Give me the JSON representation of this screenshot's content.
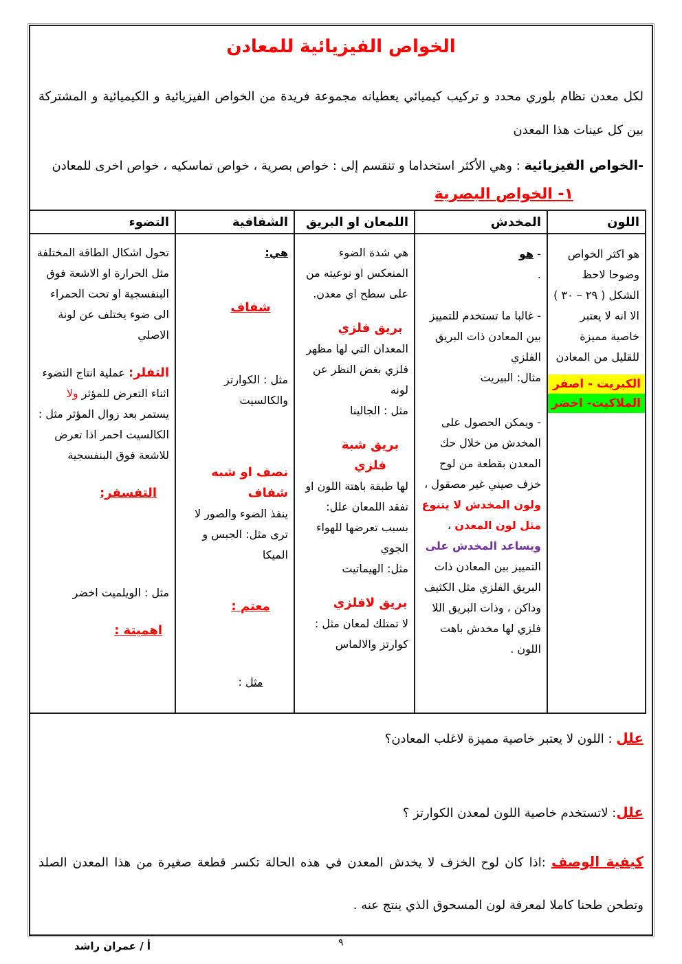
{
  "colors": {
    "accent_red": "#ff0000",
    "emphasis_purple": "#7030a0",
    "highlight_yellow": "#ffff00",
    "highlight_green": "#00ff00",
    "border": "#1c1c1c"
  },
  "header": {
    "title": "الخواص الفيزيائية للمعادن"
  },
  "intro": {
    "text": "لكل معدن نظام بلوري محدد و تركيب كيميائي يعطيانه مجموعة فريدة من الخواص الفيزيائية و الكيميائية و المشتركة بين كل عينات هذا المعدن"
  },
  "physical": {
    "label": "-الخواص الفيزيائية",
    "rest": "  : وهي الأكثر استخداما و تنقسم إلى : خواص بصرية ، خواص تماسكيه ، خواص اخرى للمعادن"
  },
  "optical_heading": "١- الخواص البصرية",
  "table": {
    "headers": {
      "color": "اللون",
      "streak": "المخدش",
      "luster": "اللمعان او البريق",
      "transparency": "الشفافية",
      "luminescence": "التضوء"
    },
    "color": {
      "p1": "هو اكثر الخواص وضوحا لاحظ الشكل ( ٢٩ – ٣٠ ) الا انه لا يعتبر خاصية مميزة للقليل من المعادن",
      "hl_yellow": "الكبريت - اصفر",
      "hl_green": "الملاكيت- اخضر"
    },
    "streak": {
      "dash": "- ",
      "is_label": "هو",
      "dot": ".",
      "p2": "- غالبا ما تستخدم للتمييز بين المعادن ذات البريق الفلزي",
      "p3": "مثال: البيريت",
      "p4a": "- ويمكن الحصول على المخدش من خلال حك المعدن بقطعة من لوح خزف صيني غير مصقول ، ",
      "p4_red": "ولون المخدش لا يتنوع مثل لون المعدن",
      "p4b": " ، ",
      "p4_purple": "ويساعد المخدش على",
      "p4c": " التمييز بين المعادن ذات البريق الفلزي مثل الكثيف وداكن ، وذات البريق اللا فلزي لها مخدش باهت اللون ."
    },
    "luster": {
      "p1": "هي شدة الضوء المنعكس او نوعيته من على سطح اي معدن.",
      "h1": "بريق فلزي",
      "p2": "المعدان التي لها مظهر فلزي بغض النظر عن لونه",
      "p3": "مثل : الجالينا",
      "h2": "بريق شبة فلزي",
      "p4": "لها طبقة باهتة اللون او تفقد اللمعان علل: بسبب تعرضها للهواء الجوي",
      "p5": "مثل: الهيماتيت",
      "h3": "بريق لافلزي",
      "p6": "لا تمتلك لمعان مثل : كوارتز والالماس"
    },
    "transparency": {
      "def_label": "هي:",
      "h1": "شفاف",
      "p1": "مثل : الكوارتز والكالسيت",
      "h2": "نصف او شبه شفاف",
      "p2": "ينفذ الضوء والصور لا ترى مثل: الجبس و الميكا",
      "h3": "معتم :",
      "p3_u": "مثل",
      "p3_rest": " :"
    },
    "luminescence": {
      "p1": "تحول اشكال الطاقة المختلفة مثل الحرارة او الاشعة فوق البنفسجية او تحت الحمراء الى ضوء يختلف عن لونة الاصلي",
      "h1": "التفلر:",
      "p2a": " عملية انتاج التضوء اثناء التعرض للمؤثر ",
      "p2_red": "ولا",
      "p2b": " يستمر بعد زوال المؤثر مثل : الكالسيت احمر اذا تعرض للاشعة فوق البنفسجية",
      "h2": "التفسفر:",
      "p3": "مثل : الويلميت اخضر",
      "h3": "اهميتة :"
    }
  },
  "questions": {
    "q1_label": "علل",
    "q1_text": " : اللون لا يعتبر خاصية مميزة لاغلب المعادن؟",
    "q2_label": "علل",
    "q2_text": ": لاتستخدم خاصية اللون لمعدن الكوارتز ؟",
    "q3_label": "كيفية الوصف",
    "q3_text": " :اذا كان لوح الخزف لا يخدش المعدن في هذه الحالة تكسر قطعة صغيرة من هذا المعدن الصلد وتطحن طحنا كاملا لمعرفة لون المسحوق الذي ينتج عنه ."
  },
  "footer": {
    "author": "أ / عمران راشد",
    "page_number": "٩"
  }
}
